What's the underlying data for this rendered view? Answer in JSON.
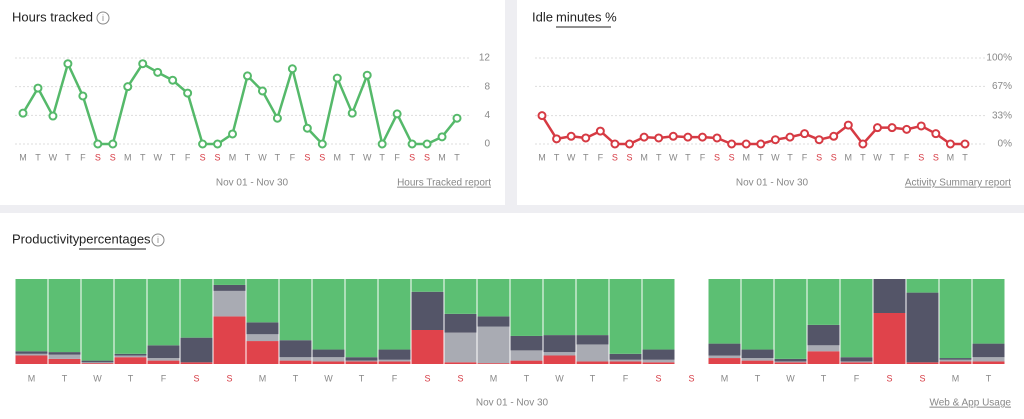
{
  "chart_data": [
    {
      "type": "line",
      "title": "Hours tracked",
      "date_range": "Nov 01 - Nov 30",
      "link": "Hours Tracked report",
      "categories": [
        "M",
        "T",
        "W",
        "T",
        "F",
        "S",
        "S",
        "M",
        "T",
        "W",
        "T",
        "F",
        "S",
        "S",
        "M",
        "T",
        "W",
        "T",
        "F",
        "S",
        "S",
        "M",
        "T",
        "W",
        "T",
        "F",
        "S",
        "S",
        "M",
        "T"
      ],
      "values": [
        4.3,
        7.8,
        3.9,
        11.2,
        6.7,
        0,
        0,
        8,
        11.2,
        10,
        8.9,
        7.1,
        0,
        0,
        1.4,
        9.5,
        7.4,
        3.6,
        10.5,
        2.2,
        0,
        9.2,
        4.3,
        9.6,
        0,
        4.2,
        0,
        0,
        1,
        3.6
      ],
      "color": "#55b96a",
      "ylim": [
        0,
        12
      ],
      "yticks": [
        0,
        4,
        8,
        12
      ],
      "grid": true
    },
    {
      "type": "line",
      "title": "Idle",
      "title_link": "minutes %",
      "date_range": "Nov 01 - Nov 30",
      "link": "Activity Summary report",
      "categories": [
        "M",
        "T",
        "W",
        "T",
        "F",
        "S",
        "S",
        "M",
        "T",
        "W",
        "T",
        "F",
        "S",
        "S",
        "M",
        "T",
        "W",
        "T",
        "F",
        "S",
        "S",
        "M",
        "T",
        "W",
        "T",
        "F",
        "S",
        "S",
        "M",
        "T"
      ],
      "values": [
        33,
        6,
        9,
        7,
        15,
        0,
        0,
        8,
        7,
        9,
        8,
        8,
        7,
        0,
        0,
        0,
        5,
        8,
        12,
        5,
        9,
        22,
        0,
        19,
        19,
        17,
        21,
        12,
        0,
        0
      ],
      "color": "#d63a43",
      "ylim": [
        0,
        100
      ],
      "yticks": [
        {
          "value": 0,
          "label": "0%"
        },
        {
          "value": 33,
          "label": "33%"
        },
        {
          "value": 67,
          "label": "67%"
        },
        {
          "value": 100,
          "label": "100%"
        }
      ],
      "grid": true
    },
    {
      "type": "stacked_bar",
      "title": "Productivity",
      "title_link": "percentages",
      "date_range": "Nov 01 - Nov 30",
      "link": "Web & App Usage",
      "categories": [
        "M",
        "T",
        "W",
        "T",
        "F",
        "S",
        "S",
        "M",
        "T",
        "W",
        "T",
        "F",
        "S",
        "S",
        "M",
        "T",
        "W",
        "T",
        "F",
        "S",
        "S",
        "M",
        "T",
        "W",
        "T",
        "F",
        "S",
        "S",
        "M",
        "T"
      ],
      "ylim": [
        0,
        100
      ],
      "series": [
        {
          "color": "#e0434b",
          "values": [
            10,
            6,
            1,
            8,
            4,
            2,
            56,
            27,
            4,
            3,
            3,
            3,
            40,
            2,
            1,
            4,
            10,
            3,
            3,
            2,
            null,
            7,
            4,
            2,
            15,
            2,
            60,
            2,
            3,
            3
          ]
        },
        {
          "color": "#a9abb3",
          "values": [
            2,
            5,
            1,
            2,
            3,
            0,
            30,
            8,
            4,
            5,
            1,
            2,
            0,
            35,
            43,
            12,
            4,
            20,
            2,
            3,
            null,
            3,
            3,
            1,
            7,
            1,
            0,
            0,
            2,
            5
          ]
        },
        {
          "color": "#545568",
          "values": [
            3,
            3,
            2,
            2,
            15,
            29,
            7,
            14,
            20,
            9,
            4,
            12,
            45,
            22,
            12,
            17,
            20,
            11,
            7,
            12,
            null,
            14,
            10,
            3,
            24,
            5,
            40,
            82,
            2,
            16
          ]
        },
        {
          "color": "#5cbf73",
          "values": [
            85,
            86,
            96,
            88,
            78,
            69,
            7,
            51,
            72,
            83,
            92,
            83,
            15,
            41,
            44,
            67,
            66,
            66,
            88,
            83,
            null,
            76,
            83,
            94,
            54,
            92,
            0,
            16,
            93,
            76
          ]
        }
      ]
    }
  ]
}
